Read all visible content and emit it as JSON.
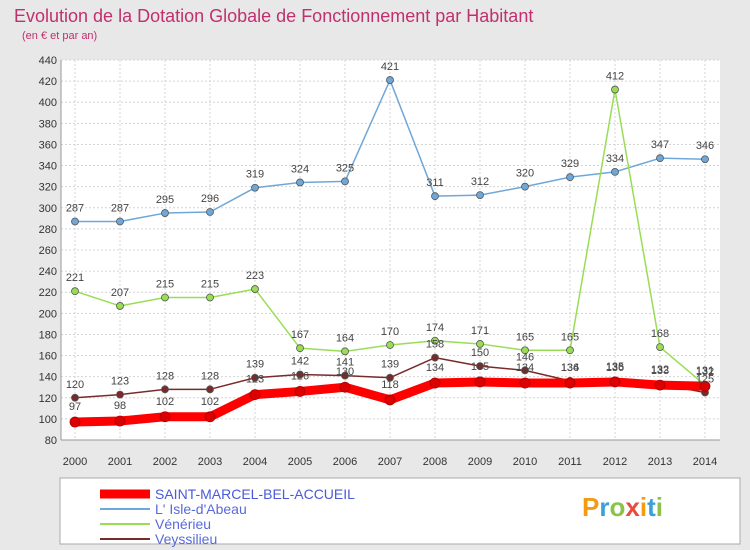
{
  "title": "Evolution de la Dotation Globale de Fonctionnement par Habitant",
  "subtitle": "(en € et par an)",
  "logo": "Proxiti",
  "chart_data": {
    "type": "line",
    "title": "Evolution de la Dotation Globale de Fonctionnement par Habitant",
    "subtitle": "(en € et par an)",
    "x": [
      "2000",
      "2001",
      "2002",
      "2003",
      "2004",
      "2005",
      "2006",
      "2007",
      "2008",
      "2009",
      "2010",
      "2011",
      "2012",
      "2013",
      "2014"
    ],
    "ylim": [
      80,
      440
    ],
    "ytick_step": 20,
    "grid": true,
    "legend_placement": "bottom-left",
    "series": [
      {
        "name": "SAINT-MARCEL-BEL-ACCUEIL",
        "color": "#ff0000",
        "values": [
          97,
          98,
          102,
          102,
          123,
          126,
          130,
          118,
          134,
          135,
          134,
          134,
          135,
          132,
          131
        ]
      },
      {
        "name": "L' Isle-d'Abeau",
        "color": "#6fa7d8",
        "values": [
          287,
          287,
          295,
          296,
          319,
          324,
          325,
          421,
          311,
          312,
          320,
          329,
          334,
          347,
          346
        ]
      },
      {
        "name": "Vénérieu",
        "color": "#99dd55",
        "values": [
          221,
          207,
          215,
          215,
          223,
          167,
          164,
          170,
          174,
          171,
          165,
          165,
          412,
          168,
          132
        ]
      },
      {
        "name": "Veyssilieu",
        "color": "#7a2a2a",
        "values": [
          120,
          123,
          128,
          128,
          139,
          142,
          141,
          139,
          158,
          150,
          146,
          136,
          136,
          133,
          125
        ]
      }
    ]
  }
}
